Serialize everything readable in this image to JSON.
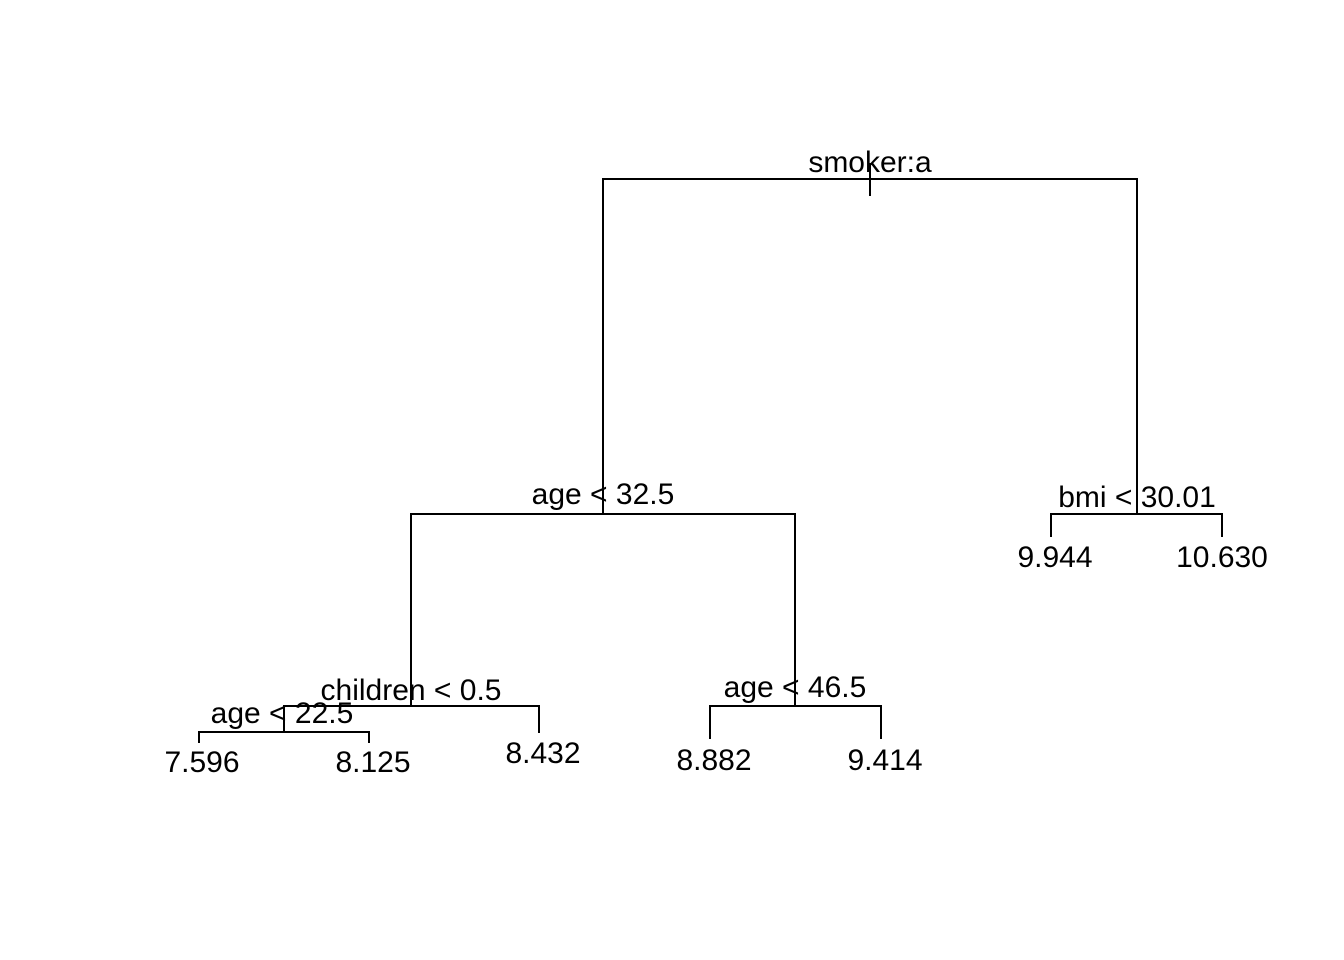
{
  "tree": {
    "root": {
      "split": "smoker:a",
      "left": {
        "split": "age < 32.5",
        "left": {
          "split": "children < 0.5",
          "left": {
            "split": "age < 22.5",
            "left": {
              "leaf": "7.596"
            },
            "right": {
              "leaf": "8.125"
            }
          },
          "right": {
            "leaf": "8.432"
          }
        },
        "right": {
          "split": "age < 46.5",
          "left": {
            "leaf": "8.882"
          },
          "right": {
            "leaf": "9.414"
          }
        }
      },
      "right": {
        "split": "bmi < 30.01",
        "left": {
          "leaf": "9.944"
        },
        "right": {
          "leaf": "10.630"
        }
      }
    }
  }
}
